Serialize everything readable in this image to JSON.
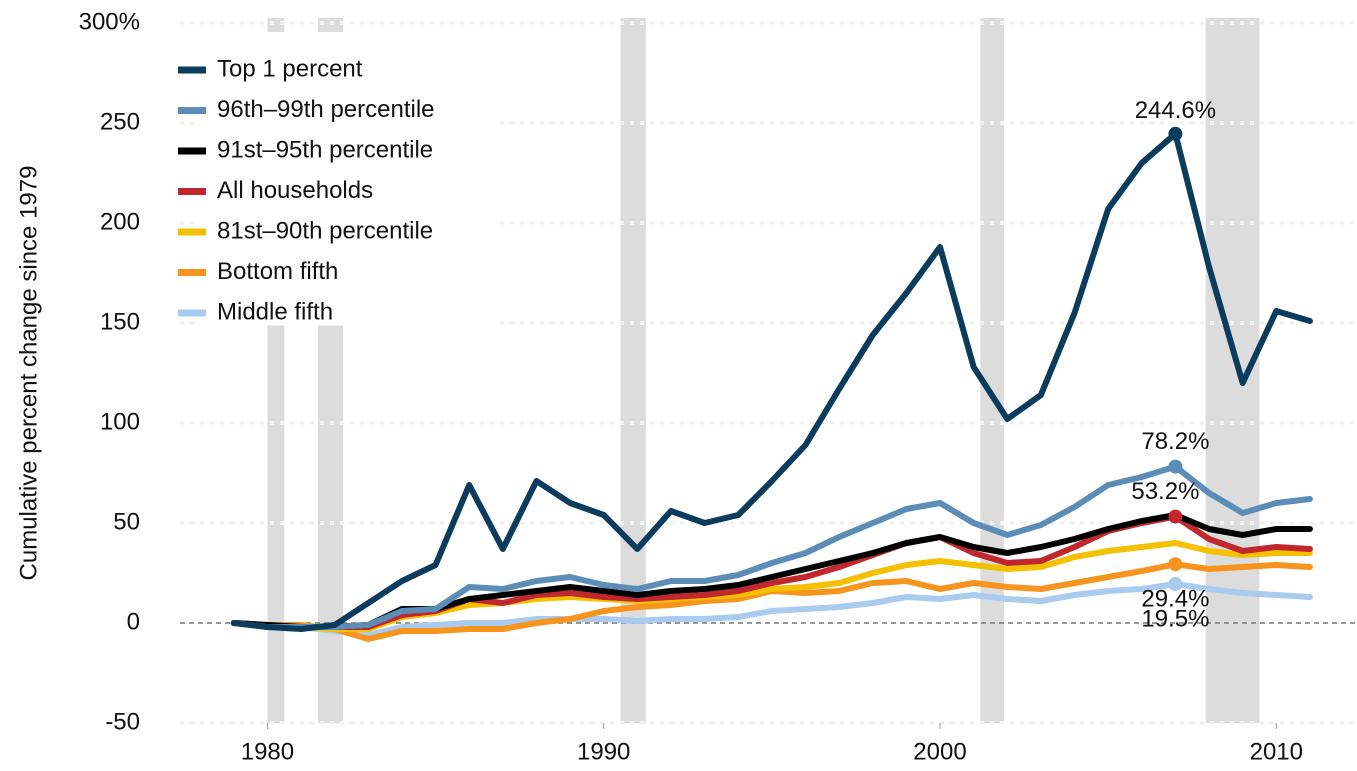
{
  "chart_data": {
    "type": "line",
    "y_label": "Cumulative percent change since 1979",
    "x": [
      1979,
      1980,
      1981,
      1982,
      1983,
      1984,
      1985,
      1986,
      1987,
      1988,
      1989,
      1990,
      1991,
      1992,
      1993,
      1994,
      1995,
      1996,
      1997,
      1998,
      1999,
      2000,
      2001,
      2002,
      2003,
      2004,
      2005,
      2006,
      2007,
      2008,
      2009,
      2010,
      2011
    ],
    "xlim": [
      1977.4,
      2012.4
    ],
    "xticks": [
      1980,
      1990,
      2000,
      2010
    ],
    "ylim": [
      -50,
      300
    ],
    "yticks": [
      -50,
      0,
      50,
      100,
      150,
      200,
      250,
      {
        "value": 300,
        "label": "300%"
      }
    ],
    "grid": true,
    "legend": "top-left",
    "recessions": [
      [
        1980,
        1980.5
      ],
      [
        1981.5,
        1982.25
      ],
      [
        1990.5,
        1991.25
      ],
      [
        2001.2,
        2001.9
      ],
      [
        2007.9,
        2009.5
      ]
    ],
    "series": [
      {
        "name": "Top 1 percent",
        "color": "#0b3c5d",
        "values": [
          0,
          -2,
          -3,
          -1,
          10,
          21,
          29,
          69,
          37,
          71,
          60,
          54,
          37,
          56,
          50,
          54,
          71,
          89,
          117,
          144,
          165,
          188,
          128,
          102,
          114,
          155,
          207,
          230,
          244.6,
          178,
          120,
          156,
          151
        ],
        "value_labels": [
          null,
          null,
          null,
          null,
          null,
          null,
          null,
          null,
          null,
          null,
          null,
          null,
          null,
          null,
          null,
          null,
          null,
          null,
          null,
          null,
          null,
          null,
          null,
          null,
          null,
          null,
          null,
          null,
          "244.6%",
          null,
          null,
          null,
          null
        ]
      },
      {
        "name": "96th–99th percentile",
        "color": "#5b8db8",
        "values": [
          0,
          -2,
          -2,
          -2,
          -1,
          6,
          7,
          18,
          17,
          21,
          23,
          19,
          17,
          21,
          21,
          24,
          30,
          35,
          43,
          50,
          57,
          60,
          50,
          44,
          49,
          58,
          69,
          73,
          78.2,
          65,
          55,
          60,
          62
        ],
        "value_labels": [
          null,
          null,
          null,
          null,
          null,
          null,
          null,
          null,
          null,
          null,
          null,
          null,
          null,
          null,
          null,
          null,
          null,
          null,
          null,
          null,
          null,
          null,
          null,
          null,
          null,
          null,
          null,
          null,
          "78.2%",
          null,
          null,
          null,
          null
        ]
      },
      {
        "name": "91st–95th percentile",
        "color": "#000000",
        "values": [
          0,
          -1,
          -2,
          -2,
          -1,
          7,
          7,
          12,
          14,
          16,
          18,
          16,
          14,
          16,
          17,
          19,
          23,
          27,
          31,
          35,
          40,
          43,
          38,
          35,
          38,
          42,
          47,
          51,
          54,
          47,
          44,
          47,
          47
        ]
      },
      {
        "name": "All households",
        "color": "#c1272d",
        "values": [
          0,
          -1,
          -2,
          -2,
          -2,
          4,
          6,
          12,
          10,
          14,
          15,
          13,
          12,
          13,
          14,
          16,
          20,
          23,
          28,
          34,
          40,
          43,
          35,
          30,
          31,
          38,
          46,
          50,
          53.2,
          42,
          36,
          38,
          37
        ],
        "value_labels": [
          null,
          null,
          null,
          null,
          null,
          null,
          null,
          null,
          null,
          null,
          null,
          null,
          null,
          null,
          null,
          null,
          null,
          null,
          null,
          null,
          null,
          null,
          null,
          null,
          null,
          null,
          null,
          null,
          "53.2%",
          null,
          null,
          null,
          null
        ]
      },
      {
        "name": "81st–90th percentile",
        "color": "#f5c000",
        "values": [
          0,
          -1,
          -2,
          -3,
          -3,
          3,
          5,
          9,
          10,
          12,
          13,
          12,
          11,
          12,
          13,
          14,
          17,
          18,
          20,
          25,
          29,
          31,
          29,
          27,
          28,
          33,
          36,
          38,
          40,
          36,
          34,
          35,
          35
        ]
      },
      {
        "name": "Bottom fifth",
        "color": "#f7941d",
        "values": [
          0,
          -1,
          -1,
          -3,
          -8,
          -4,
          -4,
          -3,
          -3,
          0,
          2,
          6,
          8,
          9,
          11,
          12,
          16,
          15,
          16,
          20,
          21,
          17,
          20,
          18,
          17,
          20,
          23,
          26,
          29.4,
          27,
          28,
          29,
          28
        ],
        "value_labels": [
          null,
          null,
          null,
          null,
          null,
          null,
          null,
          null,
          null,
          null,
          null,
          null,
          null,
          null,
          null,
          null,
          null,
          null,
          null,
          null,
          null,
          null,
          null,
          null,
          null,
          null,
          null,
          null,
          "29.4%",
          null,
          null,
          null,
          null
        ]
      },
      {
        "name": "Middle fifth",
        "color": "#a8cbef",
        "values": [
          0,
          -2,
          -2,
          -4,
          -6,
          -2,
          -1,
          0,
          0,
          2,
          2,
          2,
          1,
          2,
          2,
          3,
          6,
          7,
          8,
          10,
          13,
          12,
          14,
          12,
          11,
          14,
          16,
          17,
          19.5,
          17,
          15,
          14,
          13
        ],
        "value_labels": [
          null,
          null,
          null,
          null,
          null,
          null,
          null,
          null,
          null,
          null,
          null,
          null,
          null,
          null,
          null,
          null,
          null,
          null,
          null,
          null,
          null,
          null,
          null,
          null,
          null,
          null,
          null,
          null,
          "19.5%",
          null,
          null,
          null,
          null
        ]
      }
    ]
  }
}
